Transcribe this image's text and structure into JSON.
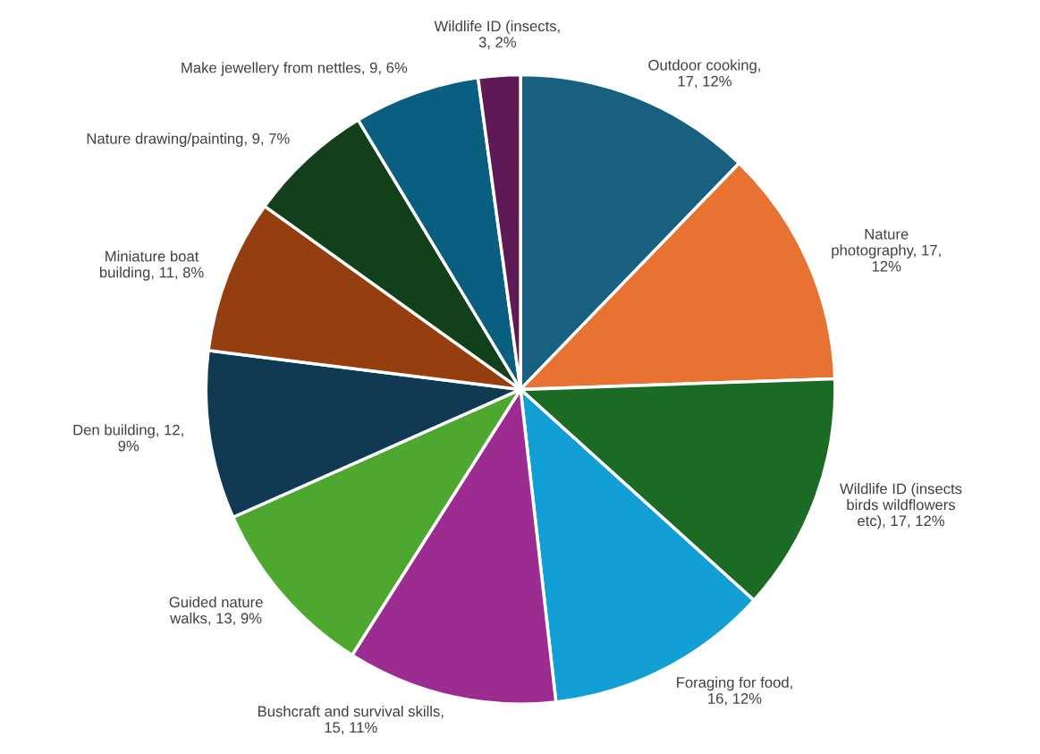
{
  "chart_data": {
    "type": "pie",
    "categories": [
      "Outdoor cooking,\n17, 12%",
      "Nature\nphotography, 17,\n12%",
      "Wildlife ID (insects\nbirds wildflowers\netc), 17, 12%",
      "Foraging for food,\n16, 12%",
      "Bushcraft and survival skills,\n15, 11%",
      "Guided nature\nwalks, 13, 9%",
      "Den building, 12,\n9%",
      "Miniature boat\nbuilding, 11, 8%",
      "Nature drawing/painting, 9, 7%",
      "Make jewellery from nettles, 9, 6%",
      "Wildlife ID (insects,\n3, 2%"
    ],
    "values": [
      17,
      17,
      17,
      16,
      15,
      13,
      12,
      11,
      9,
      9,
      3
    ],
    "colors": [
      "#17607f",
      "#e87232",
      "#1b6b25",
      "#129fd6",
      "#9d2c91",
      "#4ea72f",
      "#0f3a52",
      "#953e10",
      "#12401a",
      "#0a5e80",
      "#5d1a56"
    ]
  }
}
